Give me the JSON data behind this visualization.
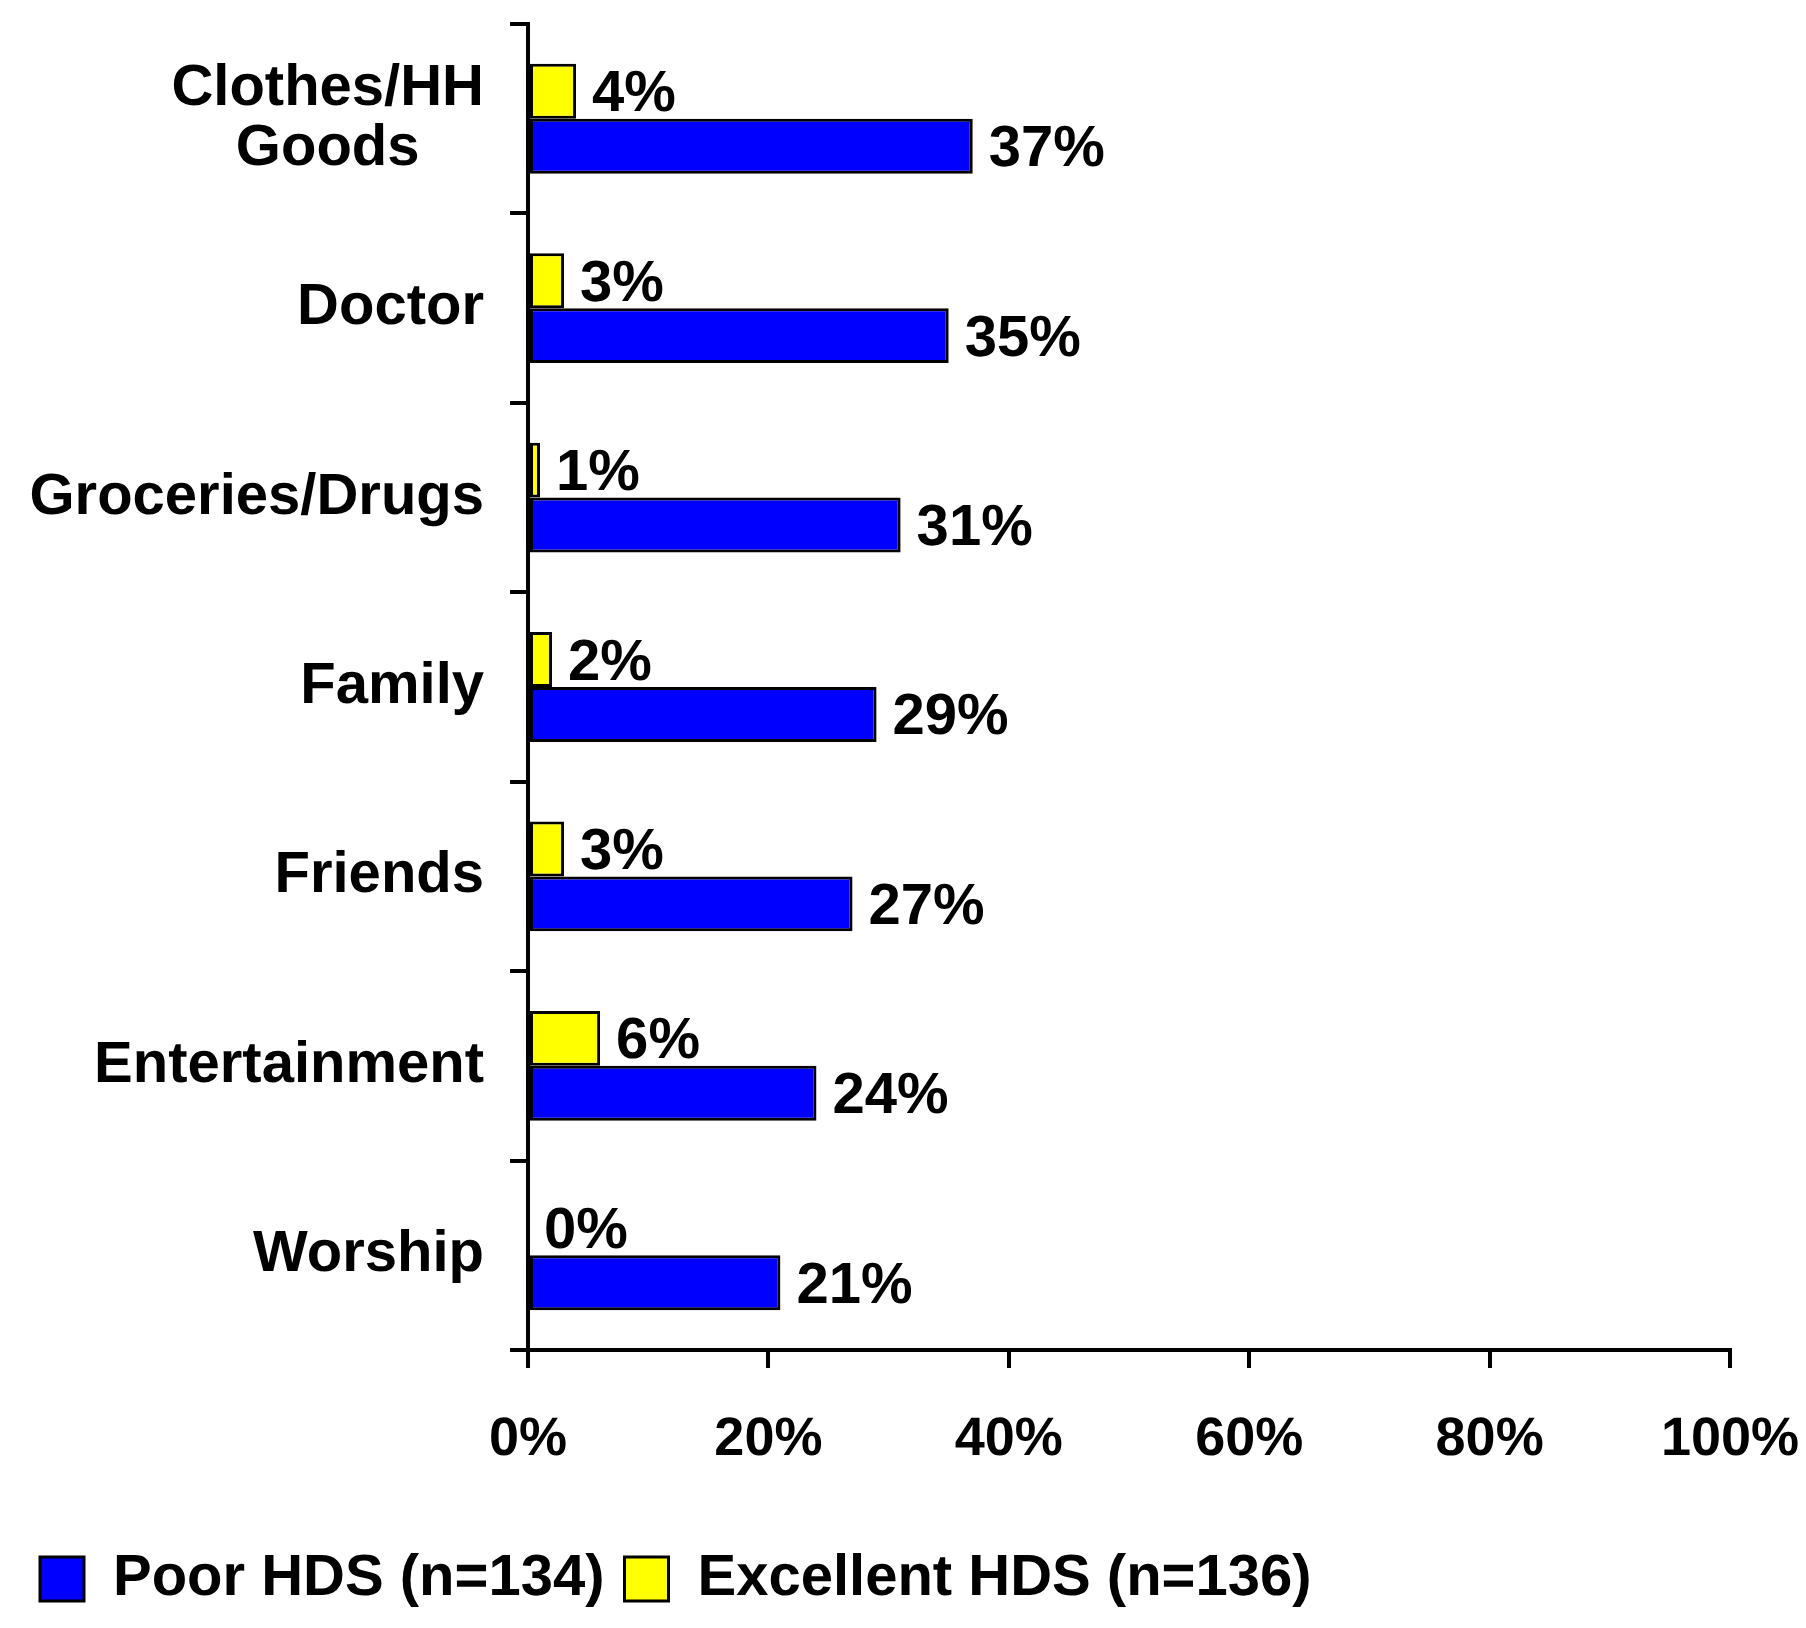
{
  "chart_data": {
    "type": "bar",
    "orientation": "horizontal",
    "categories": [
      "Clothes/HH Goods",
      "Doctor",
      "Groceries/Drugs",
      "Family",
      "Friends",
      "Entertainment",
      "Worship"
    ],
    "series": [
      {
        "name": "Poor HDS (n=134)",
        "color": "#0000ff",
        "values": [
          37,
          35,
          31,
          29,
          27,
          24,
          21
        ],
        "value_labels": [
          "37%",
          "35%",
          "31%",
          "29%",
          "27%",
          "24%",
          "21%"
        ]
      },
      {
        "name": "Excellent HDS (n=136)",
        "color": "#ffff00",
        "values": [
          4,
          3,
          1,
          2,
          3,
          6,
          0
        ],
        "value_labels": [
          "4%",
          "3%",
          "1%",
          "2%",
          "3%",
          "6%",
          "0%"
        ]
      }
    ],
    "xlim": [
      0,
      100
    ],
    "xticks": [
      {
        "value": 0,
        "label": "0%"
      },
      {
        "value": 20,
        "label": "20%"
      },
      {
        "value": 40,
        "label": "40%"
      },
      {
        "value": 60,
        "label": "60%"
      },
      {
        "value": 80,
        "label": "80%"
      },
      {
        "value": 100,
        "label": "100%"
      }
    ],
    "grid": false,
    "legend": "bottom left"
  }
}
